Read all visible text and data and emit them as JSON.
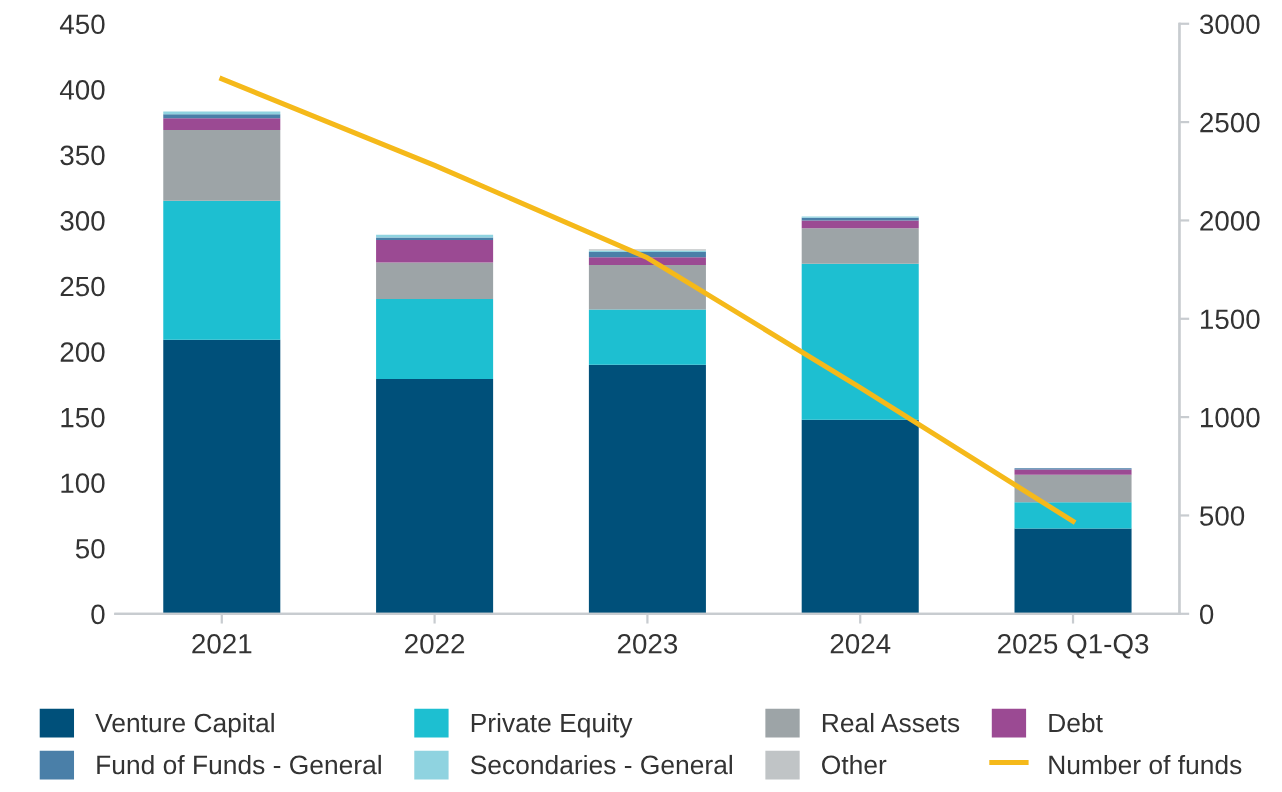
{
  "chart_data": {
    "type": "bar",
    "stacked": true,
    "categories": [
      "2021",
      "2022",
      "2023",
      "2024",
      "2025 Q1-Q3"
    ],
    "series": [
      {
        "name": "Venture Capital",
        "color": "#00507a",
        "values": [
          209,
          179,
          190,
          148,
          65
        ]
      },
      {
        "name": "Private Equity",
        "color": "#1dbfd1",
        "values": [
          106,
          61,
          42,
          119,
          20
        ]
      },
      {
        "name": "Real Assets",
        "color": "#9da4a7",
        "values": [
          54,
          28,
          34,
          27,
          21
        ]
      },
      {
        "name": "Debt",
        "color": "#9b4a93",
        "values": [
          9,
          17,
          6,
          6,
          4
        ]
      },
      {
        "name": "Fund of Funds - General",
        "color": "#4a7fa8",
        "values": [
          3,
          2,
          4,
          2,
          1
        ]
      },
      {
        "name": "Secondaries - General",
        "color": "#8fd3e0",
        "values": [
          2,
          2,
          1,
          1,
          0
        ]
      },
      {
        "name": "Other",
        "color": "#c0c4c6",
        "values": [
          null,
          0,
          1,
          0,
          0
        ]
      },
      {
        "name": "Number of funds",
        "type": "line",
        "axis": "y2",
        "color": "#f5b91a",
        "values": [
          2720,
          2280,
          1810,
          1150,
          470
        ]
      }
    ],
    "ylim": [
      0,
      450
    ],
    "yticks": [
      0,
      50,
      100,
      150,
      200,
      250,
      300,
      350,
      400,
      450
    ],
    "y2lim": [
      0,
      3000
    ],
    "y2ticks": [
      0,
      500,
      1000,
      1500,
      2000,
      2500,
      3000
    ],
    "grid": false,
    "legend": "bottom"
  }
}
